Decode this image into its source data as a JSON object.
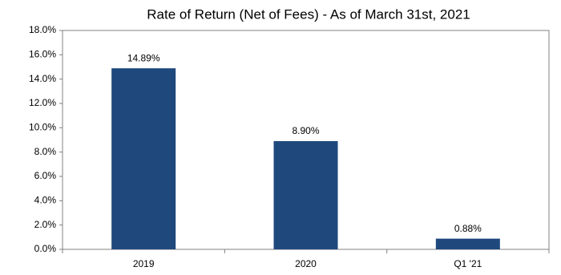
{
  "chart_data": {
    "type": "bar",
    "title": "Rate of Return  (Net of Fees) - As of March 31st, 2021",
    "categories": [
      "2019",
      "2020",
      "Q1 '21"
    ],
    "values": [
      14.89,
      8.9,
      0.88
    ],
    "value_labels": [
      "14.89%",
      "8.90%",
      "0.88%"
    ],
    "color": "#1f497d",
    "ylim": [
      0,
      18
    ],
    "yticks": [
      {
        "value": 0,
        "label": "0.0%"
      },
      {
        "value": 2,
        "label": "2.0%"
      },
      {
        "value": 4,
        "label": "4.0%"
      },
      {
        "value": 6,
        "label": "6.0%"
      },
      {
        "value": 8,
        "label": "8.0%"
      },
      {
        "value": 10,
        "label": "10.0%"
      },
      {
        "value": 12,
        "label": "12.0%"
      },
      {
        "value": 14,
        "label": "14.0%"
      },
      {
        "value": 16,
        "label": "16.0%"
      },
      {
        "value": 18,
        "label": "18.0%"
      }
    ],
    "grid": false
  }
}
